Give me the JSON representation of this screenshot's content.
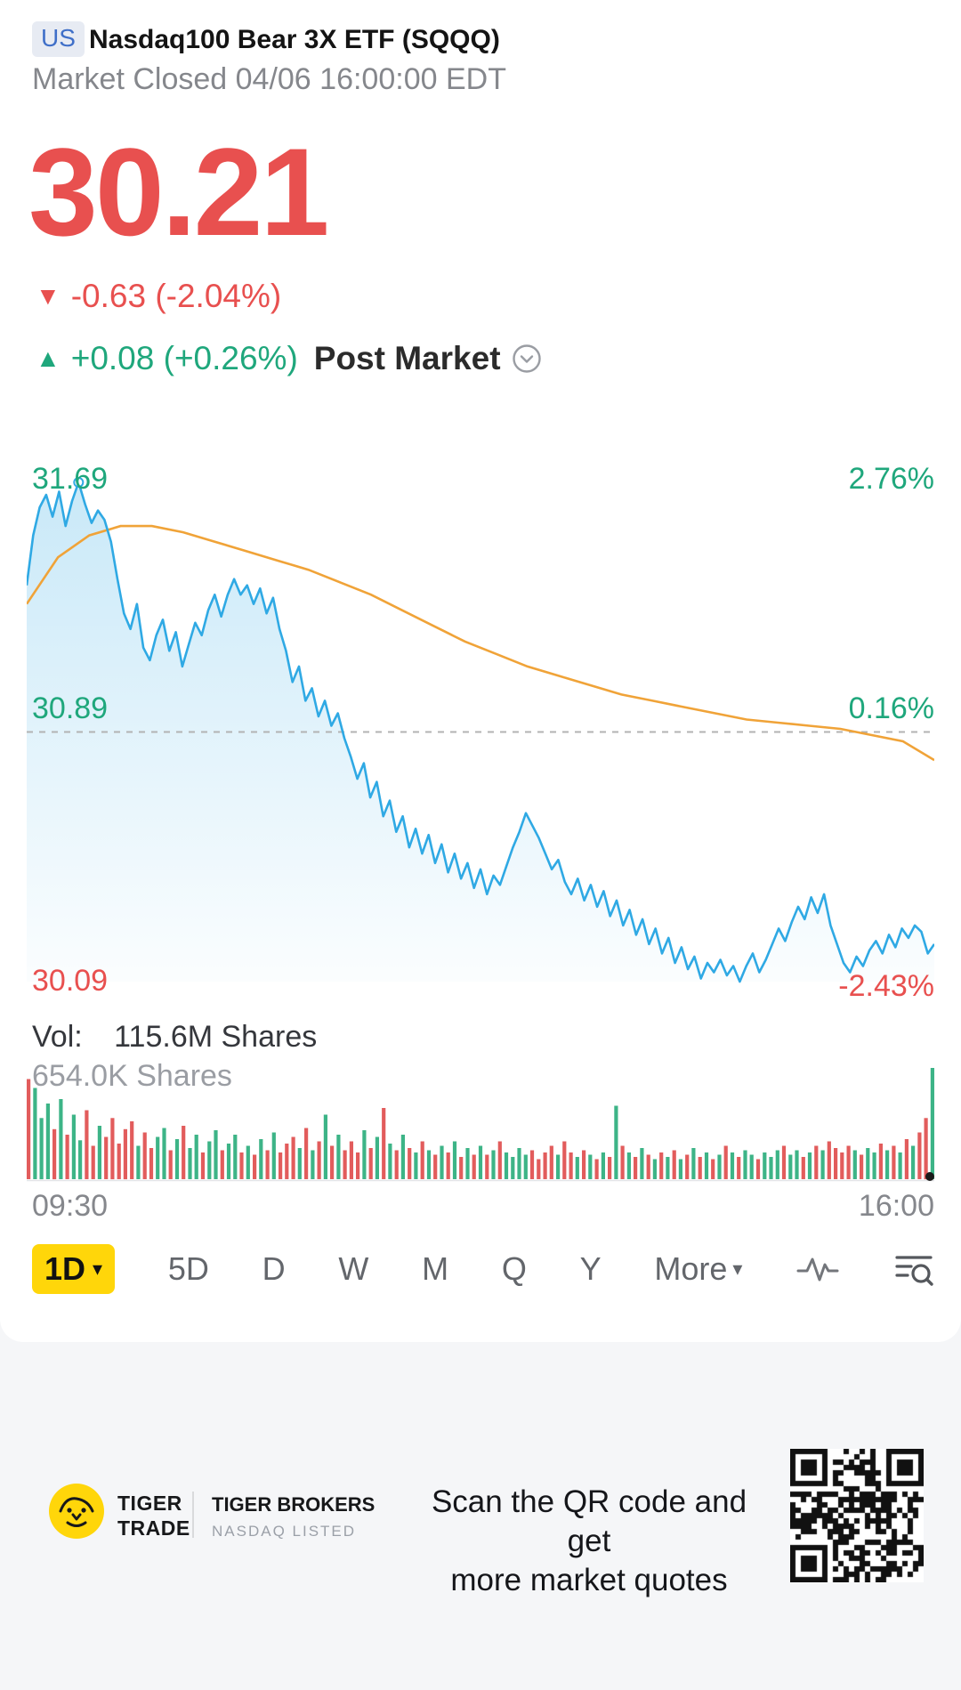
{
  "icons": {
    "down_triangle": "▼",
    "up_triangle": "▲",
    "chevron_down": "▾"
  },
  "header": {
    "market_badge": "US",
    "title": "Nasdaq100 Bear 3X ETF (SQQQ)",
    "status": "Market Closed 04/06 16:00:00 EDT"
  },
  "quote": {
    "price": "30.21",
    "change": "-0.63 (-2.04%)",
    "post_change": "+0.08 (+0.26%)",
    "post_label": "Post Market"
  },
  "chart_data": {
    "type": "line",
    "title": "SQQQ 1D intraday price with average price line and volume",
    "x_range": [
      "09:30",
      "16:00"
    ],
    "y_axis_high": 31.69,
    "y_axis_low": 30.09,
    "prev_close": 30.89,
    "labels": {
      "high_price": "31.69",
      "high_pct": "2.76%",
      "prev_close_price": "30.89",
      "prev_close_pct": "0.16%",
      "low_price": "30.09",
      "low_pct": "-2.43%"
    },
    "colors": {
      "price_line": "#2fa9e4",
      "avg_line": "#f0a338",
      "up": "#3db487",
      "down": "#e25c5c",
      "dashed": "#b3b3b3"
    },
    "price_series": [
      31.36,
      31.52,
      31.61,
      31.65,
      31.58,
      31.66,
      31.55,
      31.63,
      31.69,
      31.62,
      31.56,
      31.6,
      31.57,
      31.5,
      31.38,
      31.27,
      31.22,
      31.3,
      31.16,
      31.12,
      31.2,
      31.25,
      31.15,
      31.21,
      31.1,
      31.17,
      31.24,
      31.2,
      31.28,
      31.33,
      31.26,
      31.33,
      31.38,
      31.33,
      31.36,
      31.3,
      31.35,
      31.27,
      31.32,
      31.22,
      31.15,
      31.05,
      31.1,
      30.99,
      31.03,
      30.94,
      30.99,
      30.91,
      30.95,
      30.87,
      30.81,
      30.74,
      30.79,
      30.68,
      30.73,
      30.62,
      30.67,
      30.57,
      30.62,
      30.52,
      30.58,
      30.5,
      30.56,
      30.47,
      30.53,
      30.44,
      30.5,
      30.42,
      30.47,
      30.39,
      30.45,
      30.37,
      30.43,
      30.4,
      30.46,
      30.52,
      30.57,
      30.63,
      30.59,
      30.55,
      30.5,
      30.45,
      30.48,
      30.41,
      30.37,
      30.42,
      30.35,
      30.4,
      30.33,
      30.38,
      30.3,
      30.35,
      30.27,
      30.32,
      30.24,
      30.29,
      30.21,
      30.26,
      30.18,
      30.23,
      30.15,
      30.2,
      30.13,
      30.17,
      30.1,
      30.15,
      30.12,
      30.16,
      30.11,
      30.14,
      30.09,
      30.14,
      30.18,
      30.12,
      30.16,
      30.21,
      30.26,
      30.22,
      30.28,
      30.33,
      30.29,
      30.36,
      30.31,
      30.37,
      30.27,
      30.21,
      30.15,
      30.12,
      30.17,
      30.14,
      30.19,
      30.22,
      30.18,
      30.24,
      30.2,
      30.26,
      30.23,
      30.27,
      30.25,
      30.18,
      30.21
    ],
    "avg_series": [
      31.3,
      31.45,
      31.52,
      31.55,
      31.55,
      31.53,
      31.5,
      31.47,
      31.44,
      31.41,
      31.37,
      31.33,
      31.28,
      31.23,
      31.18,
      31.14,
      31.1,
      31.07,
      31.04,
      31.01,
      30.99,
      30.97,
      30.95,
      30.93,
      30.92,
      30.91,
      30.9,
      30.88,
      30.86,
      30.8
    ],
    "volume_series": [
      0.9,
      0.82,
      0.55,
      0.68,
      0.45,
      0.72,
      0.4,
      0.58,
      0.35,
      0.62,
      0.3,
      0.48,
      0.38,
      0.55,
      0.32,
      0.45,
      0.52,
      0.3,
      0.42,
      0.28,
      0.38,
      0.46,
      0.26,
      0.36,
      0.48,
      0.28,
      0.4,
      0.24,
      0.34,
      0.44,
      0.26,
      0.32,
      0.4,
      0.24,
      0.3,
      0.22,
      0.36,
      0.26,
      0.42,
      0.24,
      0.32,
      0.38,
      0.28,
      0.46,
      0.26,
      0.34,
      0.58,
      0.3,
      0.4,
      0.26,
      0.34,
      0.24,
      0.44,
      0.28,
      0.38,
      0.64,
      0.32,
      0.26,
      0.4,
      0.28,
      0.24,
      0.34,
      0.26,
      0.22,
      0.3,
      0.24,
      0.34,
      0.2,
      0.28,
      0.22,
      0.3,
      0.22,
      0.26,
      0.34,
      0.24,
      0.2,
      0.28,
      0.22,
      0.26,
      0.18,
      0.24,
      0.3,
      0.22,
      0.34,
      0.24,
      0.2,
      0.26,
      0.22,
      0.18,
      0.24,
      0.2,
      0.66,
      0.3,
      0.24,
      0.2,
      0.28,
      0.22,
      0.18,
      0.24,
      0.2,
      0.26,
      0.18,
      0.22,
      0.28,
      0.2,
      0.24,
      0.18,
      0.22,
      0.3,
      0.24,
      0.2,
      0.26,
      0.22,
      0.18,
      0.24,
      0.2,
      0.26,
      0.3,
      0.22,
      0.26,
      0.2,
      0.24,
      0.3,
      0.26,
      0.34,
      0.28,
      0.24,
      0.3,
      0.26,
      0.22,
      0.28,
      0.24,
      0.32,
      0.26,
      0.3,
      0.24,
      0.36,
      0.3,
      0.42,
      0.55,
      1.0
    ]
  },
  "volume_panel": {
    "label": "Vol:",
    "total": "115.6M Shares",
    "last": "654.0K Shares"
  },
  "toolbar": {
    "active": "1D",
    "tabs": [
      "5D",
      "D",
      "W",
      "M",
      "Q",
      "Y"
    ],
    "more_label": "More"
  },
  "footer": {
    "brand_line1": "TIGER",
    "brand_line2": "TRADE",
    "brokers_line1": "TIGER BROKERS",
    "brokers_line2": "NASDAQ LISTED",
    "caption_line1": "Scan the QR code and get",
    "caption_line2": "more market quotes"
  }
}
